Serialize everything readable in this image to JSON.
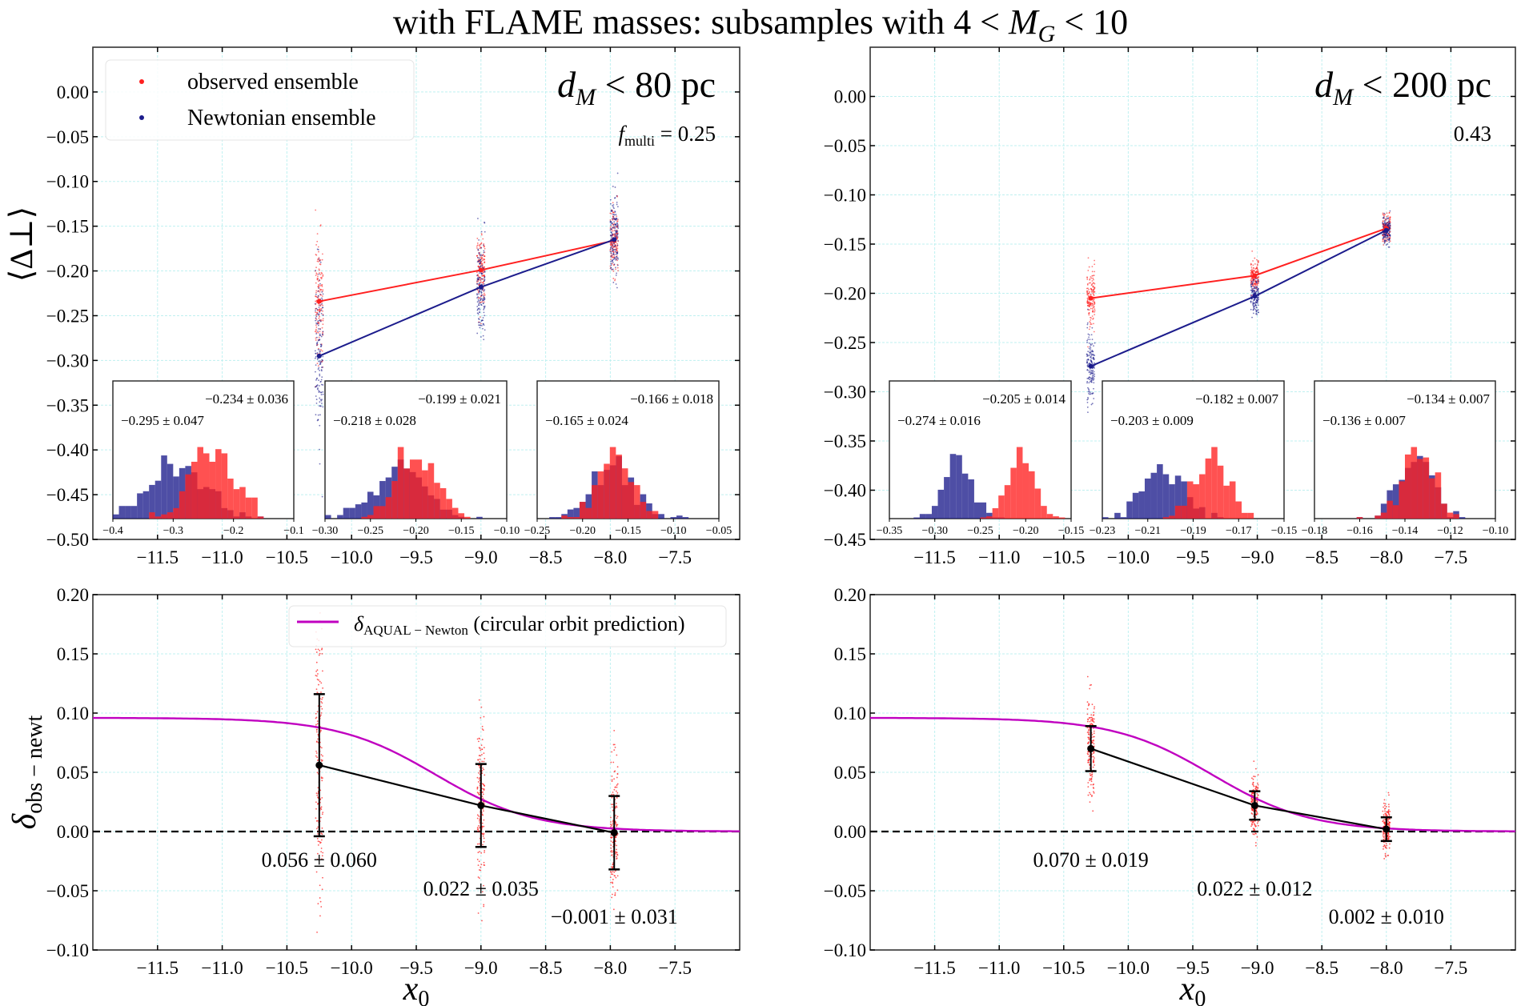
{
  "figure": {
    "title_prefix": "with FLAME masses: subsamples with 4 < ",
    "title_var": "M",
    "title_sub": "G",
    "title_suffix": " < 10"
  },
  "chart_data": [
    {
      "id": "top-left",
      "type": "line",
      "panel_label_var": "d",
      "panel_label_sub": "M",
      "panel_label_rest": " < 80 pc",
      "fmulti_label_var": "f",
      "fmulti_label_sub": "multi",
      "fmulti_value": " = 0.25",
      "ylabel": "⟨Δ⊥⟩",
      "xlabel": "",
      "xlim": [
        -12.0,
        -7.0
      ],
      "ylim": [
        -0.5,
        0.05
      ],
      "xticks": [
        -11.5,
        -11.0,
        -10.5,
        -10.0,
        -9.5,
        -9.0,
        -8.5,
        -8.0,
        -7.5
      ],
      "xticklabels": [
        "−11.5",
        "−11.0",
        "−10.5",
        "−10.0",
        "−9.5",
        "−9.0",
        "−8.5",
        "−8.0",
        "−7.5"
      ],
      "yticks": [
        0.0,
        -0.05,
        -0.1,
        -0.15,
        -0.2,
        -0.25,
        -0.3,
        -0.35,
        -0.4,
        -0.45,
        -0.5
      ],
      "yticklabels": [
        "0.00",
        "−0.05",
        "−0.10",
        "−0.15",
        "−0.20",
        "−0.25",
        "−0.30",
        "−0.35",
        "−0.40",
        "−0.45",
        "−0.50"
      ],
      "grid": true,
      "legend": {
        "position": "top-left",
        "entries": [
          {
            "label": "observed ensemble",
            "color": "#ff2020",
            "marker": "dot"
          },
          {
            "label": "Newtonian ensemble",
            "color": "#1c1c8c",
            "marker": "dot"
          }
        ]
      },
      "x": [
        -10.25,
        -9.0,
        -7.97
      ],
      "series": [
        {
          "name": "observed ensemble",
          "color": "#ff2020",
          "values": [
            -0.234,
            -0.199,
            -0.166
          ],
          "scatter_spread": [
            0.036,
            0.021,
            0.018
          ]
        },
        {
          "name": "Newtonian ensemble",
          "color": "#1c1c8c",
          "values": [
            -0.295,
            -0.218,
            -0.165
          ],
          "scatter_spread": [
            0.047,
            0.028,
            0.024
          ]
        }
      ],
      "insets": [
        {
          "observed_label": "−0.234 ± 0.036",
          "newtonian_label": "−0.295 ± 0.047",
          "xlim": [
            -0.4,
            -0.1
          ],
          "xticks": [
            -0.4,
            -0.3,
            -0.2,
            -0.1
          ],
          "xticklabels": [
            "−0.4",
            "−0.3",
            "−0.2",
            "−0.1"
          ],
          "observed": {
            "mean": -0.234,
            "sd": 0.036
          },
          "newtonian": {
            "mean": -0.295,
            "sd": 0.047
          }
        },
        {
          "observed_label": "−0.199 ± 0.021",
          "newtonian_label": "−0.218 ± 0.028",
          "xlim": [
            -0.3,
            -0.1
          ],
          "xticks": [
            -0.3,
            -0.25,
            -0.2,
            -0.15,
            -0.1
          ],
          "xticklabels": [
            "−0.30",
            "−0.25",
            "−0.20",
            "−0.15",
            "−0.10"
          ],
          "observed": {
            "mean": -0.199,
            "sd": 0.021
          },
          "newtonian": {
            "mean": -0.218,
            "sd": 0.028
          }
        },
        {
          "observed_label": "−0.166 ± 0.018",
          "newtonian_label": "−0.165 ± 0.024",
          "xlim": [
            -0.25,
            -0.05
          ],
          "xticks": [
            -0.25,
            -0.2,
            -0.15,
            -0.1,
            -0.05
          ],
          "xticklabels": [
            "−0.25",
            "−0.20",
            "−0.15",
            "−0.10",
            "−0.05"
          ],
          "observed": {
            "mean": -0.166,
            "sd": 0.018
          },
          "newtonian": {
            "mean": -0.165,
            "sd": 0.024
          }
        }
      ]
    },
    {
      "id": "top-right",
      "type": "line",
      "panel_label_var": "d",
      "panel_label_sub": "M",
      "panel_label_rest": " < 200 pc",
      "fmulti_value": "0.43",
      "ylabel": "",
      "xlabel": "",
      "xlim": [
        -12.0,
        -7.0
      ],
      "ylim": [
        -0.45,
        0.05
      ],
      "xticks": [
        -11.5,
        -11.0,
        -10.5,
        -10.0,
        -9.5,
        -9.0,
        -8.5,
        -8.0,
        -7.5
      ],
      "xticklabels": [
        "−11.5",
        "−11.0",
        "−10.5",
        "−10.0",
        "−9.5",
        "−9.0",
        "−8.5",
        "−8.0",
        "−7.5"
      ],
      "yticks": [
        0.0,
        -0.05,
        -0.1,
        -0.15,
        -0.2,
        -0.25,
        -0.3,
        -0.35,
        -0.4,
        -0.45
      ],
      "yticklabels": [
        "0.00",
        "−0.05",
        "−0.10",
        "−0.15",
        "−0.20",
        "−0.25",
        "−0.30",
        "−0.35",
        "−0.40",
        "−0.45"
      ],
      "grid": true,
      "x": [
        -10.29,
        -9.02,
        -8.0
      ],
      "series": [
        {
          "name": "observed ensemble",
          "color": "#ff2020",
          "values": [
            -0.205,
            -0.182,
            -0.134
          ],
          "scatter_spread": [
            0.014,
            0.007,
            0.007
          ]
        },
        {
          "name": "Newtonian ensemble",
          "color": "#1c1c8c",
          "values": [
            -0.274,
            -0.203,
            -0.136
          ],
          "scatter_spread": [
            0.016,
            0.009,
            0.007
          ]
        }
      ],
      "insets": [
        {
          "observed_label": "−0.205 ± 0.014",
          "newtonian_label": "−0.274 ± 0.016",
          "xlim": [
            -0.35,
            -0.15
          ],
          "xticks": [
            -0.35,
            -0.3,
            -0.25,
            -0.2,
            -0.15
          ],
          "xticklabels": [
            "−0.35",
            "−0.30",
            "−0.25",
            "−0.20",
            "−0.15"
          ],
          "observed": {
            "mean": -0.205,
            "sd": 0.014
          },
          "newtonian": {
            "mean": -0.274,
            "sd": 0.016
          }
        },
        {
          "observed_label": "−0.182 ± 0.007",
          "newtonian_label": "−0.203 ± 0.009",
          "xlim": [
            -0.23,
            -0.15
          ],
          "xticks": [
            -0.23,
            -0.21,
            -0.19,
            -0.17,
            -0.15
          ],
          "xticklabels": [
            "−0.23",
            "−0.21",
            "−0.19",
            "−0.17",
            "−0.15"
          ],
          "observed": {
            "mean": -0.182,
            "sd": 0.007
          },
          "newtonian": {
            "mean": -0.203,
            "sd": 0.009
          }
        },
        {
          "observed_label": "−0.134 ± 0.007",
          "newtonian_label": "−0.136 ± 0.007",
          "xlim": [
            -0.18,
            -0.1
          ],
          "xticks": [
            -0.18,
            -0.16,
            -0.14,
            -0.12,
            -0.1
          ],
          "xticklabels": [
            "−0.18",
            "−0.16",
            "−0.14",
            "−0.12",
            "−0.10"
          ],
          "observed": {
            "mean": -0.134,
            "sd": 0.007
          },
          "newtonian": {
            "mean": -0.136,
            "sd": 0.007
          }
        }
      ]
    },
    {
      "id": "bottom-left",
      "type": "line",
      "ylabel_var": "δ",
      "ylabel_sub": "obs − newt",
      "xlabel_var": "x",
      "xlabel_sub": "0",
      "xlim": [
        -12.0,
        -7.0
      ],
      "ylim": [
        -0.1,
        0.2
      ],
      "xticks": [
        -11.5,
        -11.0,
        -10.5,
        -10.0,
        -9.5,
        -9.0,
        -8.5,
        -8.0,
        -7.5
      ],
      "xticklabels": [
        "−11.5",
        "−11.0",
        "−10.5",
        "−10.0",
        "−9.5",
        "−9.0",
        "−8.5",
        "−8.0",
        "−7.5"
      ],
      "yticks": [
        0.2,
        0.15,
        0.1,
        0.05,
        0.0,
        -0.05,
        -0.1
      ],
      "yticklabels": [
        "0.20",
        "0.15",
        "0.10",
        "0.05",
        "0.00",
        "−0.05",
        "−0.10"
      ],
      "grid": true,
      "legend": {
        "position": "top-right",
        "entries": [
          {
            "label_var": "δ",
            "label_sub": "AQUAL − Newton",
            "label_rest": " (circular orbit prediction)",
            "color": "#c000c0",
            "marker": "line"
          }
        ]
      },
      "x": [
        -10.25,
        -9.0,
        -7.97
      ],
      "values": [
        0.056,
        0.022,
        -0.001
      ],
      "errors": [
        0.06,
        0.035,
        0.031
      ],
      "value_labels": [
        "0.056 ± 0.060",
        "0.022 ± 0.035",
        "−0.001 ± 0.031"
      ],
      "prediction": {
        "name": "δ AQUAL−Newton",
        "color": "#c000c0",
        "plateau": 0.096,
        "midpoint": -9.35,
        "width": 0.38
      },
      "reference_line": 0.0
    },
    {
      "id": "bottom-right",
      "type": "line",
      "xlabel_var": "x",
      "xlabel_sub": "0",
      "xlim": [
        -12.0,
        -7.0
      ],
      "ylim": [
        -0.1,
        0.2
      ],
      "xticks": [
        -11.5,
        -11.0,
        -10.5,
        -10.0,
        -9.5,
        -9.0,
        -8.5,
        -8.0,
        -7.5
      ],
      "xticklabels": [
        "−11.5",
        "−11.0",
        "−10.5",
        "−10.0",
        "−9.5",
        "−9.0",
        "−8.5",
        "−8.0",
        "−7.5"
      ],
      "yticks": [
        0.2,
        0.15,
        0.1,
        0.05,
        0.0,
        -0.05,
        -0.1
      ],
      "yticklabels": [
        "0.20",
        "0.15",
        "0.10",
        "0.05",
        "0.00",
        "−0.05",
        "−0.10"
      ],
      "grid": true,
      "x": [
        -10.29,
        -9.02,
        -8.0
      ],
      "values": [
        0.07,
        0.022,
        0.002
      ],
      "errors": [
        0.019,
        0.012,
        0.01
      ],
      "value_labels": [
        "0.070 ± 0.019",
        "0.022 ± 0.012",
        "0.002 ± 0.010"
      ],
      "prediction": {
        "name": "δ AQUAL−Newton",
        "color": "#c000c0",
        "plateau": 0.096,
        "midpoint": -9.35,
        "width": 0.38
      },
      "reference_line": 0.0
    }
  ]
}
